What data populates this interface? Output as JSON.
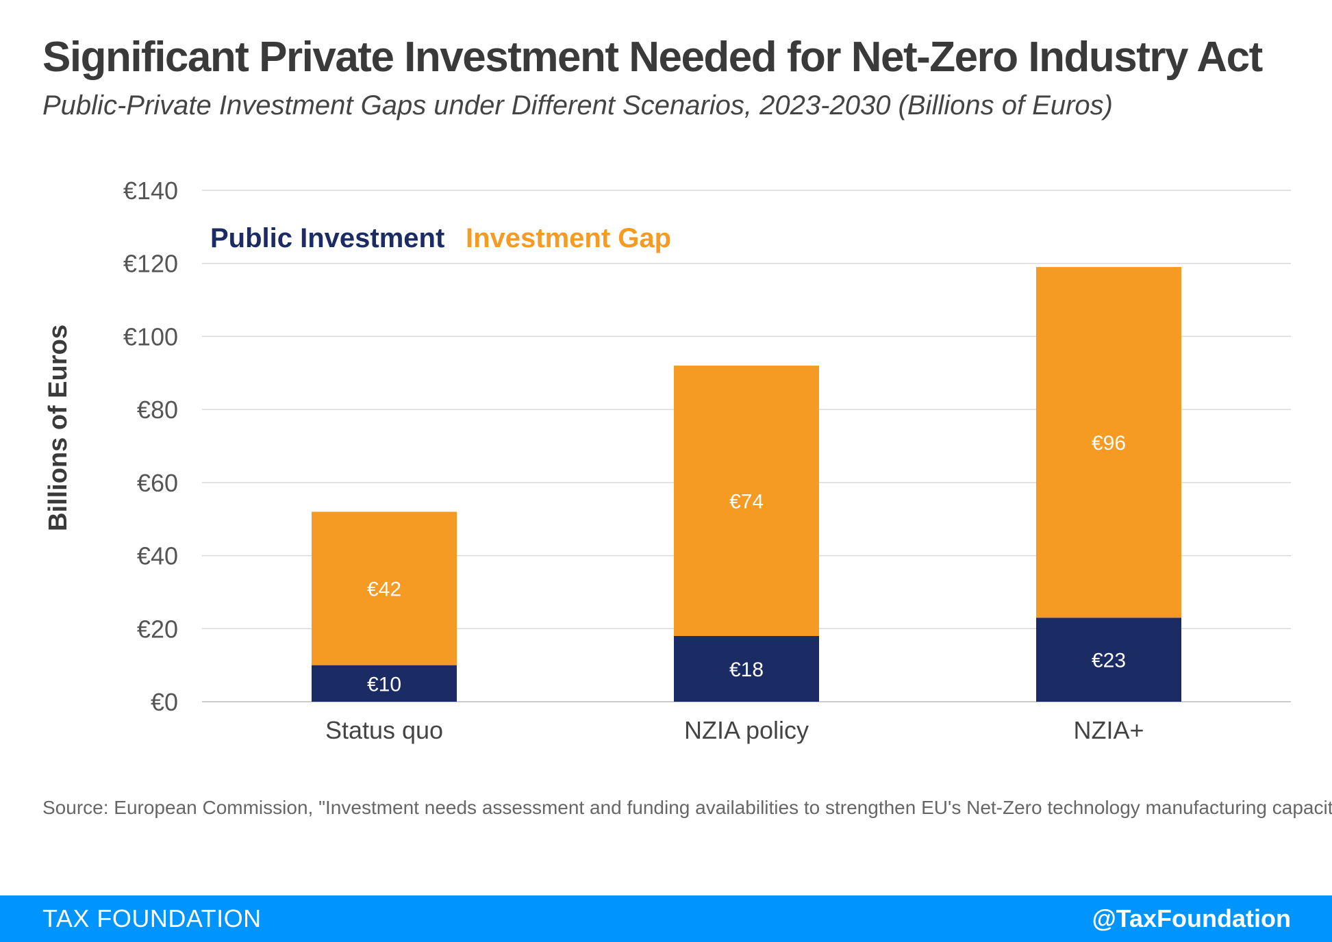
{
  "title": "Significant Private Investment Needed for Net-Zero Industry Act",
  "subtitle": "Public-Private Investment Gaps under Different Scenarios, 2023-2030 (Billions of Euros)",
  "source": "Source: European Commission, \"Investment needs assessment and funding availabilities to strengthen EU's Net-Zero technology manufacturing capacity.\"",
  "footer": {
    "brand": "TAX FOUNDATION",
    "handle": "@TaxFoundation"
  },
  "colors": {
    "public": "#1b2c64",
    "gap": "#f59a23",
    "grid": "#d9d9d9",
    "footer": "#0094ff"
  },
  "chart_data": {
    "type": "bar",
    "stacked": true,
    "categories": [
      "Status quo",
      "NZIA policy",
      "NZIA+"
    ],
    "series": [
      {
        "name": "Public Investment",
        "values": [
          10,
          18,
          23
        ],
        "labels": [
          "€10",
          "€18",
          "€23"
        ]
      },
      {
        "name": "Investment Gap",
        "values": [
          42,
          74,
          96
        ],
        "labels": [
          "€42",
          "€74",
          "€96"
        ]
      }
    ],
    "ylabel": "Billions of Euros",
    "ylim": [
      0,
      140
    ],
    "yticks": [
      0,
      20,
      40,
      60,
      80,
      100,
      120,
      140
    ],
    "ytick_labels": [
      "€0",
      "€20",
      "€40",
      "€60",
      "€80",
      "€100",
      "€120",
      "€140"
    ],
    "grid": true,
    "legend_position": "top-left"
  }
}
